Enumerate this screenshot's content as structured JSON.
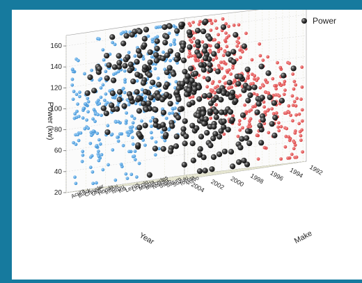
{
  "chart_data": {
    "type": "scatter",
    "subtype": "3d-scatter",
    "title": "",
    "legend": {
      "entries": [
        "Power"
      ],
      "placement": "top-right"
    },
    "axes": {
      "z": {
        "label": "Power (kw)",
        "ticks": [
          "20",
          "40",
          "60",
          "80",
          "100",
          "120",
          "140",
          "160"
        ],
        "range": [
          20,
          170
        ]
      },
      "x": {
        "label": "Year",
        "ticks": [
          "1992",
          "1994",
          "1996",
          "1998",
          "2000",
          "2002",
          "2004"
        ],
        "range": [
          1992,
          2004
        ]
      },
      "y": {
        "label": "Make",
        "ticks": [
          "Acura",
          "Buick",
          "Chrysler",
          "GMC",
          "Honda",
          "Infiniti",
          "Isuzu",
          "Kia",
          "Lexus",
          "Lincoln",
          "Mazda",
          "Mercedes",
          "Nissan",
          "Saab",
          "Saturn",
          "Suzuki",
          "Toyota",
          "Volvo"
        ]
      }
    },
    "grid": true,
    "projections": [
      {
        "plane": "year-power wall",
        "color": "#5aa9e6"
      },
      {
        "plane": "make-power wall",
        "color": "#e85a5a"
      }
    ],
    "series": [
      {
        "name": "Power",
        "color": "#333333",
        "marker": "sphere"
      }
    ]
  }
}
